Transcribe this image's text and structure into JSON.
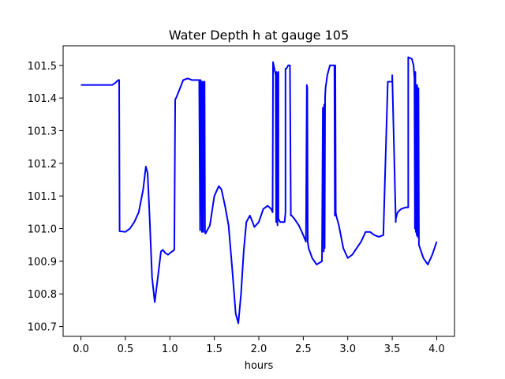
{
  "chart_data": {
    "type": "line",
    "title": "Water Depth h at gauge 105",
    "xlabel": "hours",
    "ylabel": "",
    "xlim": [
      -0.2,
      4.2
    ],
    "ylim": [
      100.67,
      101.56
    ],
    "x_ticks": [
      0.0,
      0.5,
      1.0,
      1.5,
      2.0,
      2.5,
      3.0,
      3.5,
      4.0
    ],
    "x_tick_labels": [
      "0.0",
      "0.5",
      "1.0",
      "1.5",
      "2.0",
      "2.5",
      "3.0",
      "3.5",
      "4.0"
    ],
    "y_ticks": [
      100.7,
      100.8,
      100.9,
      101.0,
      101.1,
      101.2,
      101.3,
      101.4,
      101.5
    ],
    "y_tick_labels": [
      "100.7",
      "100.8",
      "100.9",
      "101.0",
      "101.1",
      "101.2",
      "101.3",
      "101.4",
      "101.5"
    ],
    "grid": false,
    "legend": "none",
    "series": [
      {
        "color": "#0000ff",
        "x": [
          0.0,
          0.2,
          0.35,
          0.38,
          0.42,
          0.43,
          0.435,
          0.5,
          0.55,
          0.6,
          0.65,
          0.7,
          0.73,
          0.75,
          0.77,
          0.8,
          0.83,
          0.86,
          0.9,
          0.92,
          0.95,
          0.98,
          1.0,
          1.05,
          1.06,
          1.07,
          1.1,
          1.15,
          1.2,
          1.25,
          1.3,
          1.33,
          1.34,
          1.345,
          1.35,
          1.36,
          1.365,
          1.37,
          1.375,
          1.38,
          1.39,
          1.395,
          1.4,
          1.45,
          1.5,
          1.55,
          1.58,
          1.62,
          1.66,
          1.7,
          1.74,
          1.77,
          1.8,
          1.83,
          1.86,
          1.9,
          1.93,
          1.95,
          2.0,
          2.05,
          2.1,
          2.14,
          2.155,
          2.16,
          2.19,
          2.195,
          2.2,
          2.21,
          2.215,
          2.22,
          2.22,
          2.24,
          2.29,
          2.3,
          2.3,
          2.31,
          2.33,
          2.35,
          2.36,
          2.37,
          2.4,
          2.45,
          2.5,
          2.53,
          2.54,
          2.545,
          2.55,
          2.56,
          2.6,
          2.65,
          2.68,
          2.71,
          2.72,
          2.725,
          2.73,
          2.735,
          2.74,
          2.745,
          2.75,
          2.77,
          2.8,
          2.83,
          2.85,
          2.855,
          2.86,
          2.865,
          2.87,
          2.9,
          2.95,
          3.0,
          3.05,
          3.1,
          3.15,
          3.2,
          3.25,
          3.3,
          3.35,
          3.4,
          3.45,
          3.5,
          3.5,
          3.54,
          3.54,
          3.56,
          3.6,
          3.65,
          3.68,
          3.68,
          3.72,
          3.74,
          3.75,
          3.755,
          3.76,
          3.765,
          3.77,
          3.775,
          3.78,
          3.785,
          3.79,
          3.795,
          3.8,
          3.8,
          3.85,
          3.9,
          3.95,
          4.0
        ],
        "y": [
          101.44,
          101.44,
          101.44,
          101.445,
          101.455,
          101.455,
          100.992,
          100.99,
          101.0,
          101.02,
          101.05,
          101.12,
          101.19,
          101.17,
          101.05,
          100.85,
          100.775,
          100.84,
          100.93,
          100.935,
          100.925,
          100.92,
          100.925,
          100.935,
          101.395,
          101.4,
          101.42,
          101.455,
          101.46,
          101.455,
          101.455,
          101.455,
          100.995,
          101.455,
          101.45,
          100.99,
          101.45,
          101.45,
          100.99,
          101.45,
          101.45,
          100.99,
          100.985,
          101.01,
          101.1,
          101.13,
          101.12,
          101.07,
          101.01,
          100.88,
          100.74,
          100.71,
          100.8,
          100.93,
          101.02,
          101.04,
          101.02,
          101.005,
          101.02,
          101.06,
          101.07,
          101.06,
          101.05,
          101.51,
          101.47,
          101.02,
          101.48,
          101.01,
          101.47,
          101.48,
          101.03,
          101.02,
          101.02,
          101.05,
          101.49,
          101.49,
          101.5,
          101.5,
          101.04,
          101.04,
          101.03,
          101.01,
          100.98,
          100.96,
          101.44,
          101.43,
          100.96,
          100.94,
          100.91,
          100.89,
          100.895,
          100.9,
          101.37,
          101.37,
          100.93,
          101.38,
          100.94,
          101.4,
          101.43,
          101.47,
          101.5,
          101.5,
          101.5,
          101.04,
          101.5,
          101.05,
          101.04,
          101.01,
          100.94,
          100.91,
          100.92,
          100.94,
          100.96,
          100.99,
          100.99,
          100.98,
          100.975,
          100.98,
          101.45,
          101.45,
          101.47,
          101.02,
          101.03,
          101.05,
          101.06,
          101.065,
          101.065,
          101.525,
          101.52,
          101.5,
          101.46,
          101.0,
          101.48,
          100.99,
          101.44,
          100.98,
          101.44,
          100.975,
          101.43,
          101.43,
          100.96,
          100.95,
          100.91,
          100.89,
          100.92,
          100.96
        ]
      }
    ]
  }
}
